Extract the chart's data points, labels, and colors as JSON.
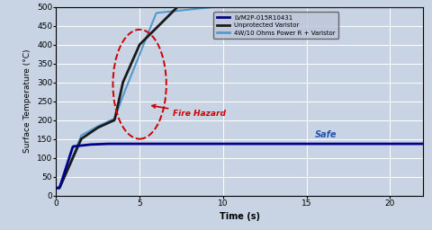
{
  "xlabel": "Time (s)",
  "ylabel": "Surface Temperature (°C)",
  "xlim": [
    0,
    22
  ],
  "ylim": [
    0,
    500
  ],
  "xticks": [
    0,
    5,
    10,
    15,
    20
  ],
  "yticks": [
    0,
    50,
    100,
    150,
    200,
    250,
    300,
    350,
    400,
    450,
    500
  ],
  "legend_labels": [
    "LVM2P-015R10431",
    "Unprotected Varistor",
    "4W/10 Ohms Power R + Varistor"
  ],
  "legend_colors": [
    "#00008B",
    "#1a1a1a",
    "#5599CC"
  ],
  "bg_color": "#c8d4e4",
  "grid_color": "#ffffff",
  "fire_hazard_text": "Fire Hazard",
  "safe_text": "Safe",
  "fire_hazard_color": "#cc0000",
  "safe_color": "#2255aa"
}
